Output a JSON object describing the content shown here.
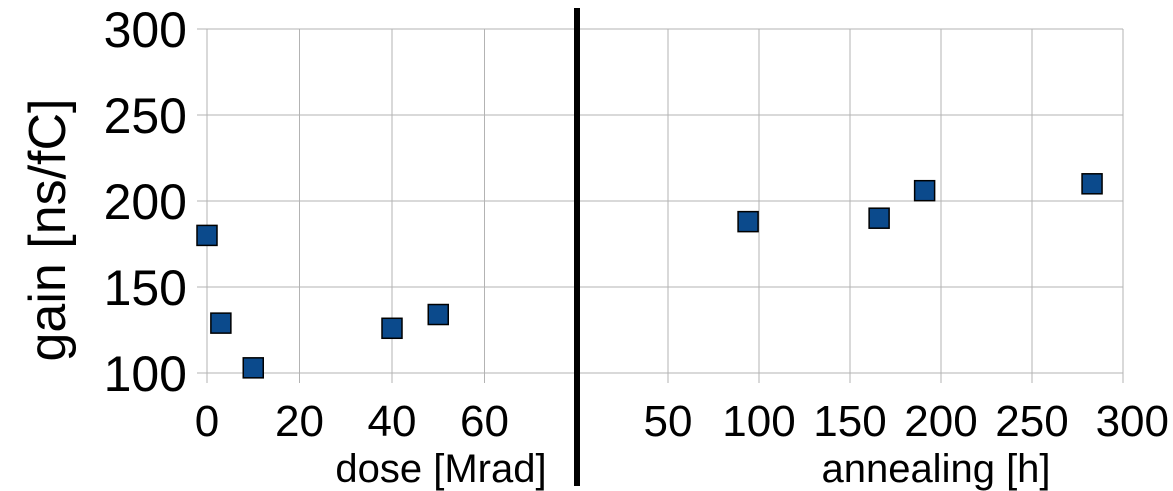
{
  "chart_data": [
    {
      "type": "scatter",
      "xlabel": "dose [Mrad]",
      "ylabel": "gain [ns/fC]",
      "xlim": [
        0,
        80
      ],
      "ylim": [
        100,
        300
      ],
      "xticks": [
        0,
        20,
        40,
        60
      ],
      "yticks": [
        100,
        150,
        200,
        250,
        300
      ],
      "grid": true,
      "marker_color": "#0b4a8c",
      "x": [
        0,
        3,
        10,
        40,
        50
      ],
      "y": [
        180,
        129,
        103,
        126,
        134
      ]
    },
    {
      "type": "scatter",
      "xlabel": "annealing [h]",
      "ylabel": "",
      "xlim": [
        0,
        300
      ],
      "ylim": [
        100,
        300
      ],
      "xticks": [
        50,
        100,
        150,
        200,
        250,
        300
      ],
      "grid": true,
      "marker_color": "#0b4a8c",
      "x": [
        94,
        166,
        191,
        283
      ],
      "y": [
        188,
        190,
        206,
        210
      ]
    }
  ]
}
